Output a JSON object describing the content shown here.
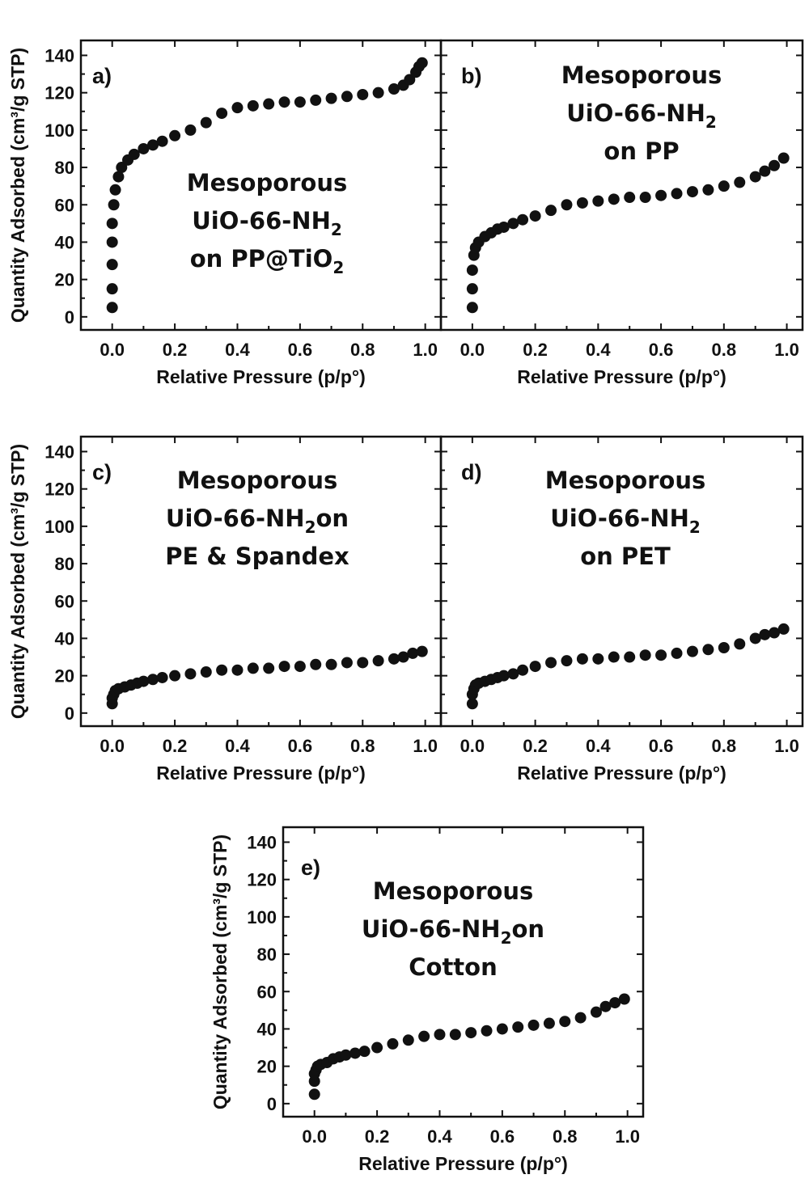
{
  "chart_data": [
    {
      "type": "scatter",
      "panel_label": "a)",
      "annotation_lines": [
        {
          "text": "Mesoporous",
          "sub": ""
        },
        {
          "text": "UiO-66-NH",
          "sub": "2"
        },
        {
          "text": "on PP@TiO",
          "sub": "2"
        }
      ],
      "xlabel": "Relative Pressure (p/p°)",
      "ylabel": "Quantity Adsorbed (cm³/g STP)",
      "xlim": [
        -0.1,
        1.05
      ],
      "ylim": [
        -7,
        148
      ],
      "xticks": [
        0.0,
        0.2,
        0.4,
        0.6,
        0.8,
        1.0
      ],
      "xtick_labels": [
        "0.0",
        "0.2",
        "0.4",
        "0.6",
        "0.8",
        "1.0"
      ],
      "yticks": [
        0,
        20,
        40,
        60,
        80,
        100,
        120,
        140
      ],
      "ytick_labels": [
        "0",
        "20",
        "40",
        "60",
        "80",
        "100",
        "120",
        "140"
      ],
      "x": [
        0.0,
        0.0,
        0.0,
        0.0,
        0.0,
        0.005,
        0.01,
        0.02,
        0.03,
        0.05,
        0.07,
        0.1,
        0.13,
        0.16,
        0.2,
        0.25,
        0.3,
        0.35,
        0.4,
        0.45,
        0.5,
        0.55,
        0.6,
        0.65,
        0.7,
        0.75,
        0.8,
        0.85,
        0.9,
        0.93,
        0.95,
        0.97,
        0.98,
        0.99
      ],
      "y": [
        5,
        15,
        28,
        40,
        50,
        60,
        68,
        75,
        80,
        84,
        87,
        90,
        92,
        94,
        97,
        100,
        104,
        109,
        112,
        113,
        114,
        115,
        115,
        116,
        117,
        118,
        119,
        120,
        122,
        124,
        127,
        131,
        134,
        136
      ]
    },
    {
      "type": "scatter",
      "panel_label": "b)",
      "annotation_lines": [
        {
          "text": "Mesoporous",
          "sub": ""
        },
        {
          "text": "UiO-66-NH",
          "sub": "2"
        },
        {
          "text": "on PP",
          "sub": ""
        }
      ],
      "xlabel": "Relative Pressure (p/p°)",
      "ylabel": "",
      "xlim": [
        -0.1,
        1.05
      ],
      "ylim": [
        -7,
        148
      ],
      "xticks": [
        0.0,
        0.2,
        0.4,
        0.6,
        0.8,
        1.0
      ],
      "xtick_labels": [
        "0.0",
        "0.2",
        "0.4",
        "0.6",
        "0.8",
        "1.0"
      ],
      "yticks": [
        0,
        20,
        40,
        60,
        80,
        100,
        120,
        140
      ],
      "ytick_labels": [],
      "x": [
        0.0,
        0.0,
        0.0,
        0.005,
        0.01,
        0.02,
        0.04,
        0.06,
        0.08,
        0.1,
        0.13,
        0.16,
        0.2,
        0.25,
        0.3,
        0.35,
        0.4,
        0.45,
        0.5,
        0.55,
        0.6,
        0.65,
        0.7,
        0.75,
        0.8,
        0.85,
        0.9,
        0.93,
        0.96,
        0.99
      ],
      "y": [
        5,
        15,
        25,
        33,
        37,
        40,
        43,
        45,
        47,
        48,
        50,
        52,
        54,
        57,
        60,
        61,
        62,
        63,
        64,
        64,
        65,
        66,
        67,
        68,
        70,
        72,
        75,
        78,
        81,
        85
      ]
    },
    {
      "type": "scatter",
      "panel_label": "c)",
      "annotation_lines": [
        {
          "text": "Mesoporous",
          "sub": ""
        },
        {
          "text": "UiO-66-NH",
          "sub": "2",
          "after": "on"
        },
        {
          "text": "PE & Spandex",
          "sub": ""
        }
      ],
      "xlabel": "Relative Pressure (p/p°)",
      "ylabel": "Quantity Adsorbed (cm³/g STP)",
      "xlim": [
        -0.1,
        1.05
      ],
      "ylim": [
        -7,
        148
      ],
      "xticks": [
        0.0,
        0.2,
        0.4,
        0.6,
        0.8,
        1.0
      ],
      "xtick_labels": [
        "0.0",
        "0.2",
        "0.4",
        "0.6",
        "0.8",
        "1.0"
      ],
      "yticks": [
        0,
        20,
        40,
        60,
        80,
        100,
        120,
        140
      ],
      "ytick_labels": [
        "0",
        "20",
        "40",
        "60",
        "80",
        "100",
        "120",
        "140"
      ],
      "x": [
        0.0,
        0.0,
        0.005,
        0.01,
        0.02,
        0.04,
        0.06,
        0.08,
        0.1,
        0.13,
        0.16,
        0.2,
        0.25,
        0.3,
        0.35,
        0.4,
        0.45,
        0.5,
        0.55,
        0.6,
        0.65,
        0.7,
        0.75,
        0.8,
        0.85,
        0.9,
        0.93,
        0.96,
        0.99
      ],
      "y": [
        5,
        8,
        10,
        12,
        13,
        14,
        15,
        16,
        17,
        18,
        19,
        20,
        21,
        22,
        23,
        23,
        24,
        24,
        25,
        25,
        26,
        26,
        27,
        27,
        28,
        29,
        30,
        32,
        33
      ]
    },
    {
      "type": "scatter",
      "panel_label": "d)",
      "annotation_lines": [
        {
          "text": "Mesoporous",
          "sub": ""
        },
        {
          "text": "UiO-66-NH",
          "sub": "2"
        },
        {
          "text": "on PET",
          "sub": ""
        }
      ],
      "xlabel": "Relative Pressure (p/p°)",
      "ylabel": "",
      "xlim": [
        -0.1,
        1.05
      ],
      "ylim": [
        -7,
        148
      ],
      "xticks": [
        0.0,
        0.2,
        0.4,
        0.6,
        0.8,
        1.0
      ],
      "xtick_labels": [
        "0.0",
        "0.2",
        "0.4",
        "0.6",
        "0.8",
        "1.0"
      ],
      "yticks": [
        0,
        20,
        40,
        60,
        80,
        100,
        120,
        140
      ],
      "ytick_labels": [],
      "x": [
        0.0,
        0.0,
        0.005,
        0.01,
        0.02,
        0.04,
        0.06,
        0.08,
        0.1,
        0.13,
        0.16,
        0.2,
        0.25,
        0.3,
        0.35,
        0.4,
        0.45,
        0.5,
        0.55,
        0.6,
        0.65,
        0.7,
        0.75,
        0.8,
        0.85,
        0.9,
        0.93,
        0.96,
        0.99
      ],
      "y": [
        5,
        10,
        13,
        15,
        16,
        17,
        18,
        19,
        20,
        21,
        23,
        25,
        27,
        28,
        29,
        29,
        30,
        30,
        31,
        31,
        32,
        33,
        34,
        35,
        37,
        40,
        42,
        43,
        45
      ]
    },
    {
      "type": "scatter",
      "panel_label": "e)",
      "annotation_lines": [
        {
          "text": "Mesoporous",
          "sub": ""
        },
        {
          "text": "UiO-66-NH",
          "sub": "2",
          "after": "on"
        },
        {
          "text": "Cotton",
          "sub": ""
        }
      ],
      "xlabel": "Relative Pressure (p/p°)",
      "ylabel": "Quantity Adsorbed (cm³/g STP)",
      "xlim": [
        -0.1,
        1.05
      ],
      "ylim": [
        -7,
        148
      ],
      "xticks": [
        0.0,
        0.2,
        0.4,
        0.6,
        0.8,
        1.0
      ],
      "xtick_labels": [
        "0.0",
        "0.2",
        "0.4",
        "0.6",
        "0.8",
        "1.0"
      ],
      "yticks": [
        0,
        20,
        40,
        60,
        80,
        100,
        120,
        140
      ],
      "ytick_labels": [
        "0",
        "20",
        "40",
        "60",
        "80",
        "100",
        "120",
        "140"
      ],
      "x": [
        0.0,
        0.0,
        0.0,
        0.005,
        0.01,
        0.02,
        0.04,
        0.06,
        0.08,
        0.1,
        0.13,
        0.16,
        0.2,
        0.25,
        0.3,
        0.35,
        0.4,
        0.45,
        0.5,
        0.55,
        0.6,
        0.65,
        0.7,
        0.75,
        0.8,
        0.85,
        0.9,
        0.93,
        0.96,
        0.99
      ],
      "y": [
        5,
        12,
        16,
        18,
        20,
        21,
        22,
        24,
        25,
        26,
        27,
        28,
        30,
        32,
        34,
        36,
        37,
        37,
        38,
        39,
        40,
        41,
        42,
        43,
        44,
        46,
        49,
        52,
        54,
        56
      ]
    }
  ]
}
